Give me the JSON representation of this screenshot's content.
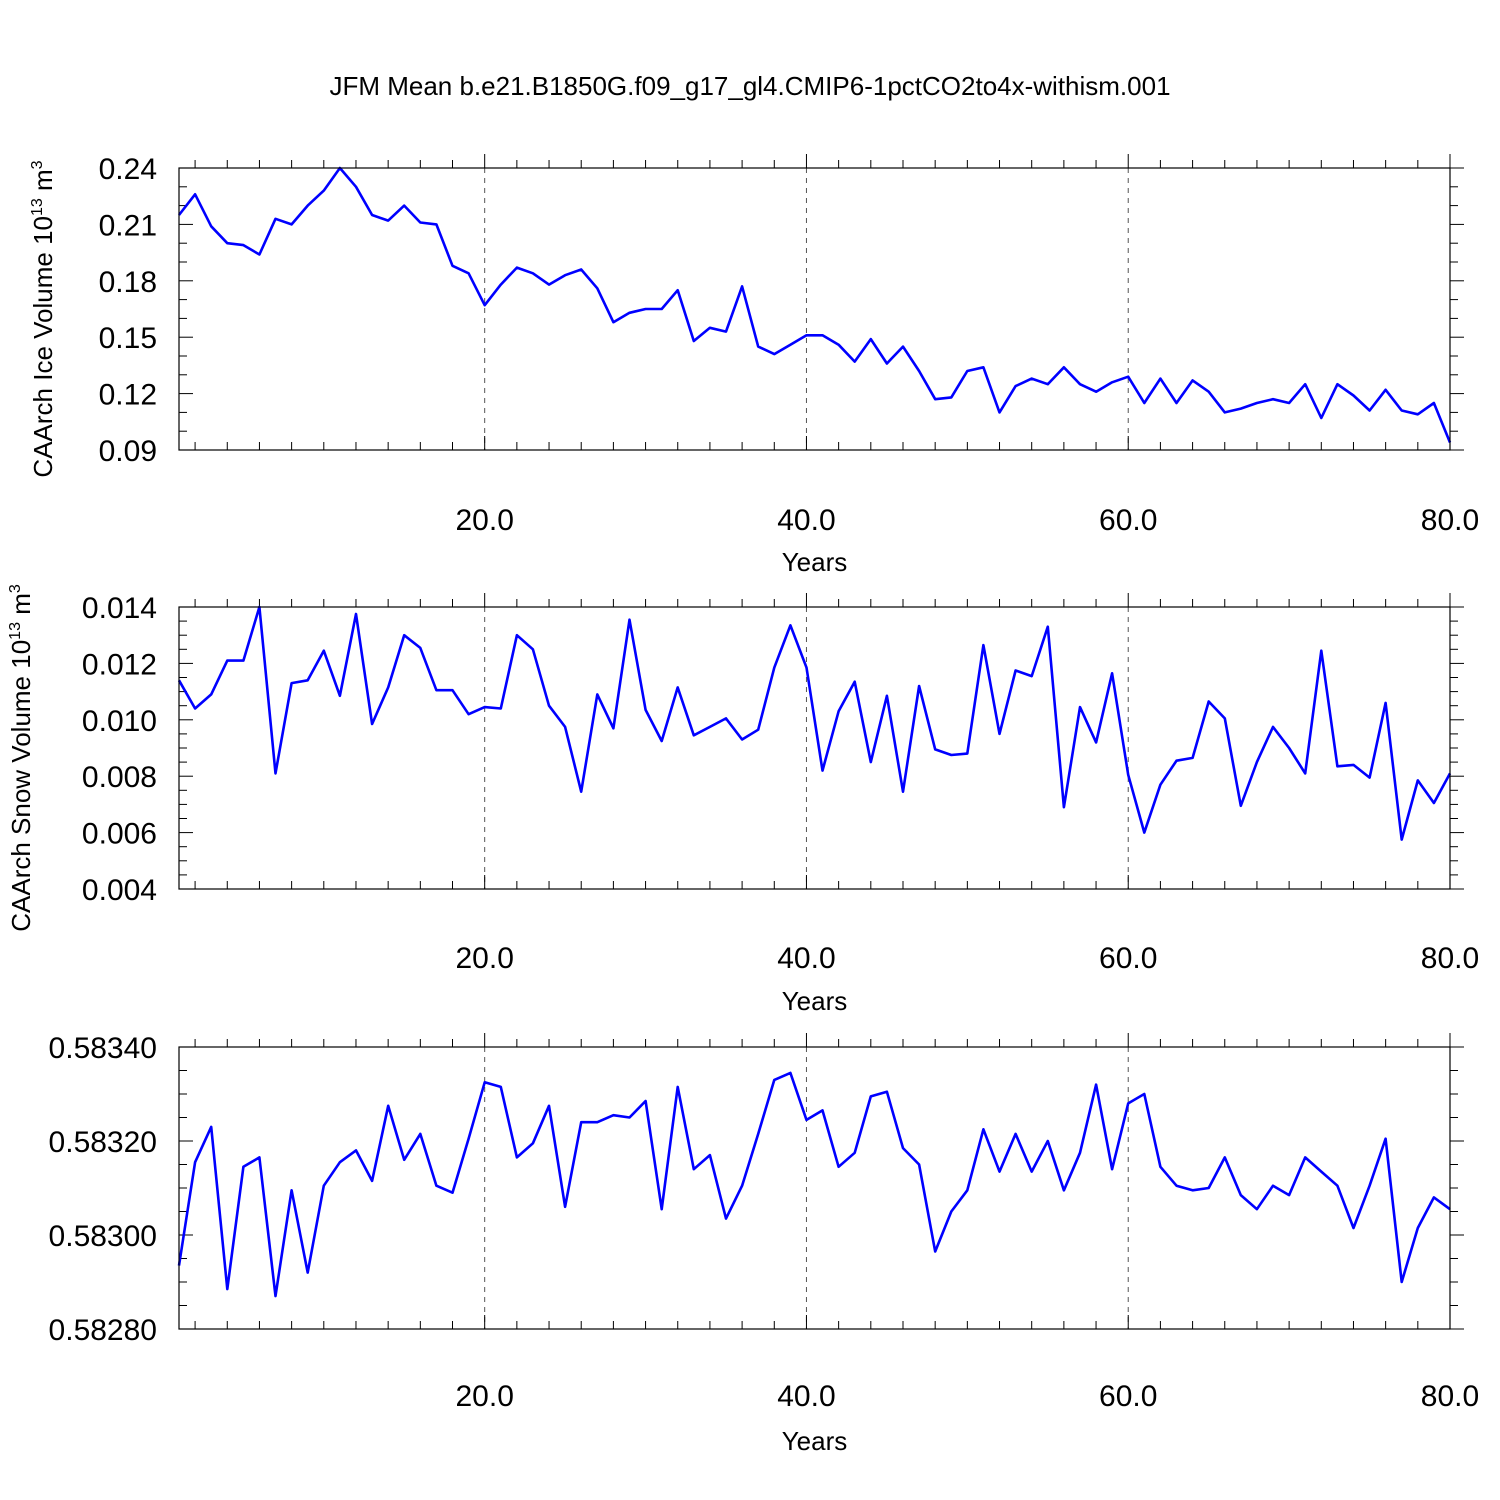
{
  "title": "JFM Mean b.e21.B1850G.f09_g17_gl4.CMIP6-1pctCO2to4x-withism.001",
  "colors": {
    "line": "#0000ff",
    "axes": "#000000",
    "grid": "#555555"
  },
  "chart_data": [
    {
      "type": "line",
      "xlabel": "Years",
      "ylabel": {
        "main": "CAArch Ice Volume 10",
        "sup": "13",
        "mid": " m",
        "sup2": "3"
      },
      "xlim": [
        1,
        80
      ],
      "ylim": [
        0.09,
        0.24
      ],
      "xticks": [
        20,
        40,
        60,
        80
      ],
      "xticklabels": [
        "20.0",
        "40.0",
        "60.0",
        "80.0"
      ],
      "yticks": [
        0.09,
        0.12,
        0.15,
        0.18,
        0.21,
        0.24
      ],
      "yticklabels": [
        "0.09",
        "0.12",
        "0.15",
        "0.18",
        "0.21",
        "0.24"
      ],
      "x_minor_step": 2,
      "y_minor_step": 0.01,
      "grid": "dashed vertical at x major ticks",
      "series": [
        {
          "x_start": 1,
          "values": [
            0.215,
            0.226,
            0.209,
            0.2,
            0.199,
            0.194,
            0.213,
            0.21,
            0.22,
            0.228,
            0.24,
            0.23,
            0.215,
            0.212,
            0.22,
            0.211,
            0.21,
            0.188,
            0.184,
            0.167,
            0.178,
            0.187,
            0.184,
            0.178,
            0.183,
            0.186,
            0.176,
            0.158,
            0.163,
            0.165,
            0.165,
            0.175,
            0.148,
            0.155,
            0.153,
            0.177,
            0.145,
            0.141,
            0.146,
            0.151,
            0.151,
            0.146,
            0.137,
            0.149,
            0.136,
            0.145,
            0.132,
            0.117,
            0.118,
            0.132,
            0.134,
            0.11,
            0.124,
            0.128,
            0.125,
            0.134,
            0.125,
            0.121,
            0.126,
            0.129,
            0.115,
            0.128,
            0.115,
            0.127,
            0.121,
            0.11,
            0.112,
            0.115,
            0.117,
            0.115,
            0.125,
            0.107,
            0.125,
            0.119,
            0.111,
            0.122,
            0.111,
            0.109,
            0.115,
            0.094
          ]
        }
      ]
    },
    {
      "type": "line",
      "xlabel": "Years",
      "ylabel": {
        "main": "CAArch Snow Volume 10",
        "sup": "13",
        "mid": " m",
        "sup2": "3"
      },
      "xlim": [
        1,
        80
      ],
      "ylim": [
        0.004,
        0.014
      ],
      "xticks": [
        20,
        40,
        60,
        80
      ],
      "xticklabels": [
        "20.0",
        "40.0",
        "60.0",
        "80.0"
      ],
      "yticks": [
        0.004,
        0.006,
        0.008,
        0.01,
        0.012,
        0.014
      ],
      "yticklabels": [
        "0.004",
        "0.006",
        "0.008",
        "0.010",
        "0.012",
        "0.014"
      ],
      "x_minor_step": 2,
      "y_minor_step": 0.0005,
      "grid": "dashed vertical at x major ticks",
      "series": [
        {
          "x_start": 1,
          "values": [
            0.0114,
            0.0104,
            0.0109,
            0.0121,
            0.0121,
            0.014,
            0.0081,
            0.0113,
            0.0114,
            0.01245,
            0.01085,
            0.01375,
            0.00985,
            0.01115,
            0.013,
            0.01255,
            0.01105,
            0.01105,
            0.0102,
            0.01045,
            0.0104,
            0.013,
            0.0125,
            0.0105,
            0.00975,
            0.00745,
            0.0109,
            0.0097,
            0.01355,
            0.01035,
            0.00925,
            0.01115,
            0.00945,
            0.00975,
            0.01005,
            0.0093,
            0.00965,
            0.01185,
            0.01335,
            0.01185,
            0.0082,
            0.0103,
            0.01135,
            0.0085,
            0.01085,
            0.00745,
            0.0112,
            0.00895,
            0.00875,
            0.0088,
            0.01265,
            0.0095,
            0.01175,
            0.01155,
            0.0133,
            0.0069,
            0.01045,
            0.0092,
            0.01165,
            0.00805,
            0.006,
            0.0077,
            0.00855,
            0.00865,
            0.01065,
            0.01005,
            0.00695,
            0.0085,
            0.00975,
            0.009,
            0.0081,
            0.01245,
            0.00835,
            0.0084,
            0.00795,
            0.0106,
            0.00575,
            0.00785,
            0.00705,
            0.0081
          ]
        }
      ]
    },
    {
      "type": "line",
      "xlabel": "Years",
      "ylabel": null,
      "xlim": [
        1,
        80
      ],
      "ylim": [
        0.5828,
        0.5834
      ],
      "xticks": [
        20,
        40,
        60,
        80
      ],
      "xticklabels": [
        "20.0",
        "40.0",
        "60.0",
        "80.0"
      ],
      "yticks": [
        0.5828,
        0.583,
        0.5832,
        0.5834
      ],
      "yticklabels": [
        "0.58280",
        "0.58300",
        "0.58320",
        "0.58340"
      ],
      "x_minor_step": 2,
      "y_minor_step": 5e-05,
      "grid": "dashed vertical at x major ticks",
      "series": [
        {
          "x_start": 1,
          "values": [
            0.582935,
            0.583155,
            0.58323,
            0.582885,
            0.583145,
            0.583165,
            0.58287,
            0.583095,
            0.58292,
            0.583105,
            0.583155,
            0.58318,
            0.583115,
            0.583275,
            0.58316,
            0.583215,
            0.583105,
            0.58309,
            0.583205,
            0.583325,
            0.583315,
            0.583165,
            0.583195,
            0.583275,
            0.58306,
            0.58324,
            0.58324,
            0.583255,
            0.58325,
            0.583285,
            0.583055,
            0.583315,
            0.58314,
            0.58317,
            0.583035,
            0.583105,
            0.583215,
            0.58333,
            0.583345,
            0.583245,
            0.583265,
            0.583145,
            0.583175,
            0.583295,
            0.583305,
            0.583185,
            0.58315,
            0.582965,
            0.58305,
            0.583095,
            0.583225,
            0.583135,
            0.583215,
            0.583135,
            0.5832,
            0.583095,
            0.583175,
            0.58332,
            0.58314,
            0.58328,
            0.5833,
            0.583145,
            0.583105,
            0.583095,
            0.5831,
            0.583165,
            0.583085,
            0.583055,
            0.583105,
            0.583085,
            0.583165,
            0.583135,
            0.583105,
            0.583015,
            0.583105,
            0.583205,
            0.5829,
            0.583015,
            0.58308,
            0.583055
          ]
        }
      ]
    }
  ]
}
